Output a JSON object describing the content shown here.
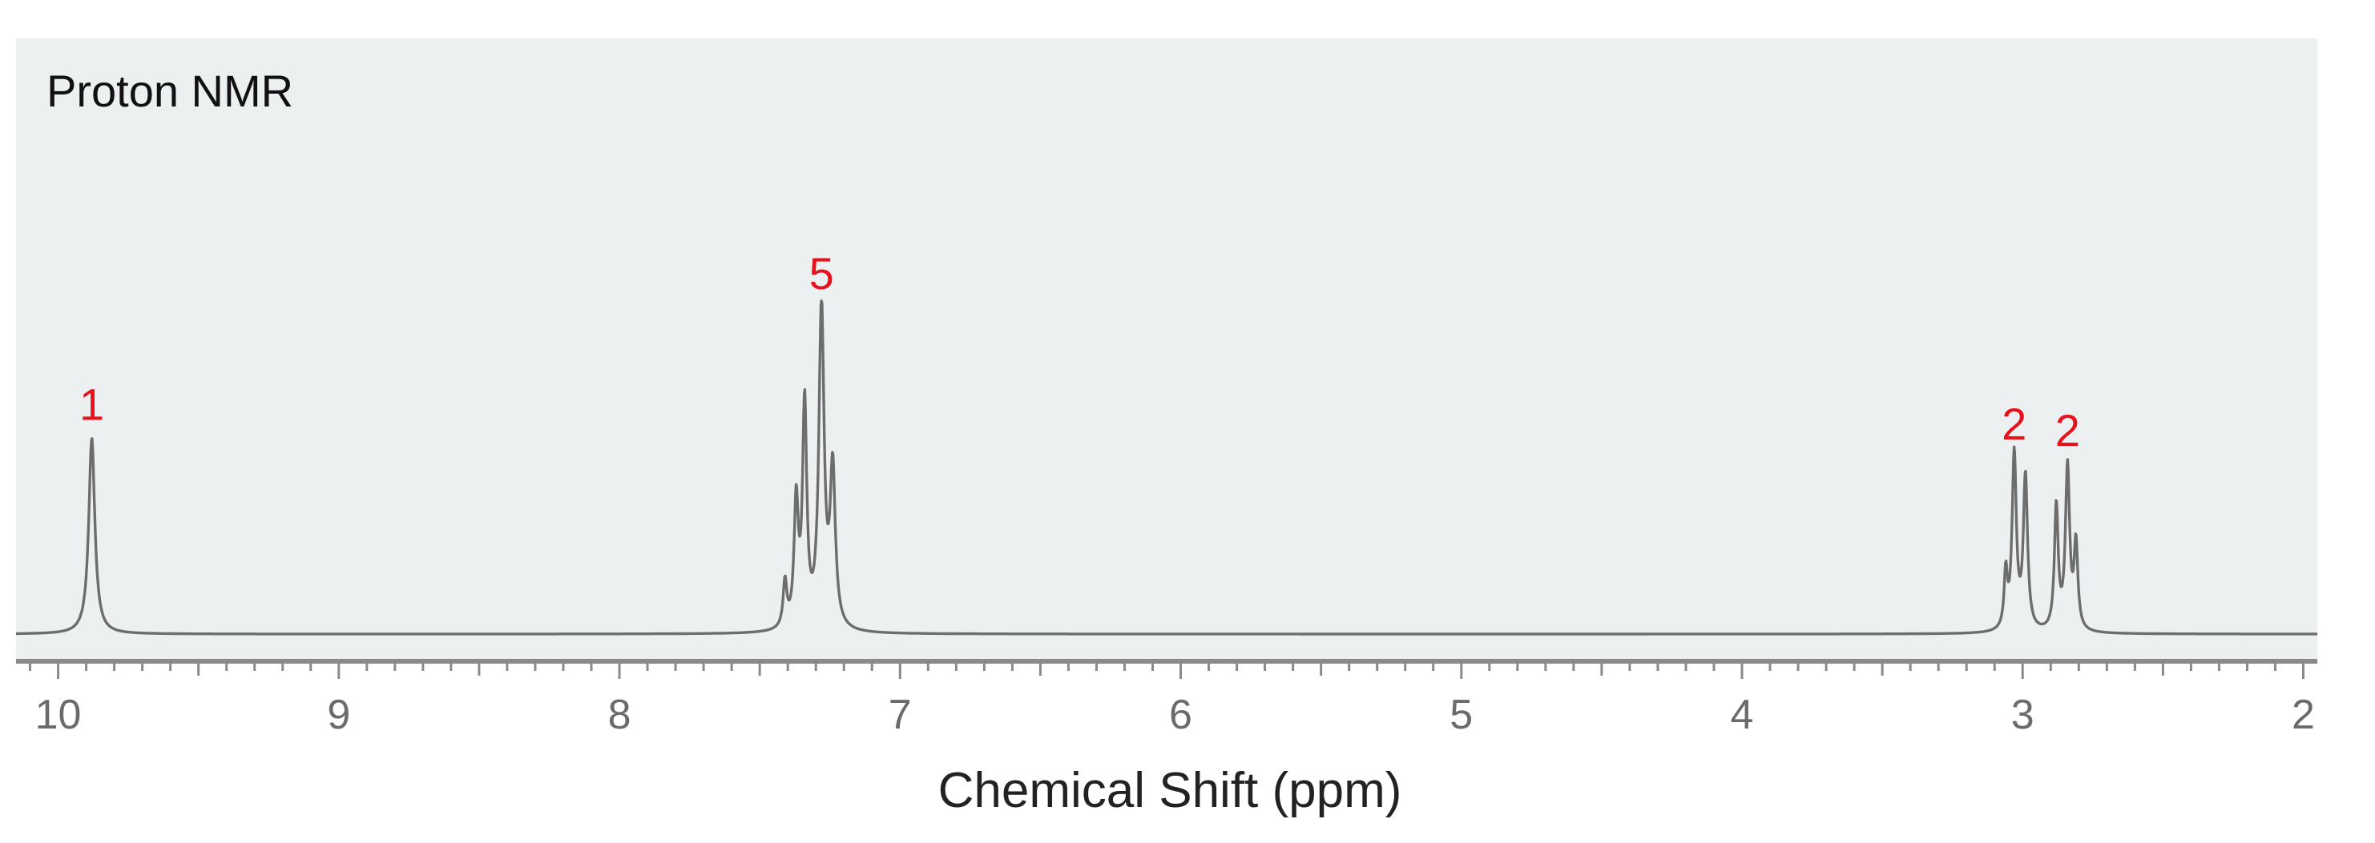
{
  "chart_data": {
    "type": "line",
    "title": "Proton NMR",
    "xlabel": "Chemical Shift (ppm)",
    "ylabel": "",
    "xlim": [
      10.15,
      1.95
    ],
    "ylim": [
      0,
      1
    ],
    "x_reversed": true,
    "xticks": [
      10,
      9,
      8,
      7,
      6,
      5,
      4,
      3,
      2
    ],
    "x_minor_step": 0.1,
    "grid": false,
    "colors": {
      "background": "#edf0f0",
      "spectrum": "#6d6d6b",
      "axis": "#8a8a8a",
      "integration": "#e8121d"
    },
    "series": [
      {
        "peaks": [
          {
            "x": 9.88,
            "y": 0.6,
            "w": 0.013
          },
          {
            "x": 7.41,
            "y": 0.14,
            "w": 0.008
          },
          {
            "x": 7.37,
            "y": 0.38,
            "w": 0.009
          },
          {
            "x": 7.34,
            "y": 0.68,
            "w": 0.009
          },
          {
            "x": 7.28,
            "y": 0.99,
            "w": 0.011
          },
          {
            "x": 7.24,
            "y": 0.48,
            "w": 0.011
          },
          {
            "x": 3.06,
            "y": 0.17,
            "w": 0.007
          },
          {
            "x": 3.03,
            "y": 0.54,
            "w": 0.009
          },
          {
            "x": 2.99,
            "y": 0.47,
            "w": 0.009
          },
          {
            "x": 2.88,
            "y": 0.38,
            "w": 0.008
          },
          {
            "x": 2.84,
            "y": 0.5,
            "w": 0.009
          },
          {
            "x": 2.81,
            "y": 0.26,
            "w": 0.008
          }
        ]
      }
    ],
    "annotations": [
      {
        "text": "1",
        "x": 9.88,
        "y": 0.7
      },
      {
        "text": "5",
        "x": 7.28,
        "y": 1.1
      },
      {
        "text": "2",
        "x": 3.03,
        "y": 0.64
      },
      {
        "text": "2",
        "x": 2.84,
        "y": 0.62
      }
    ]
  }
}
